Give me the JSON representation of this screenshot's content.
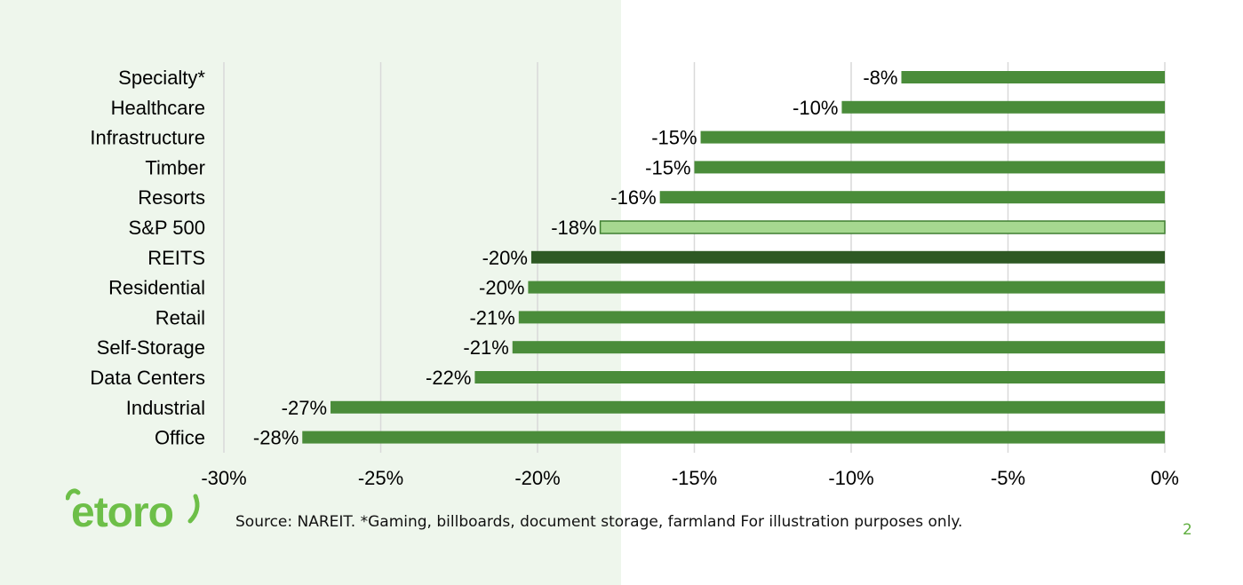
{
  "chart_data": {
    "type": "bar",
    "orientation": "horizontal",
    "categories": [
      "Specialty*",
      "Healthcare",
      "Infrastructure",
      "Timber",
      "Resorts",
      "S&P 500",
      "REITS",
      "Residential",
      "Retail",
      "Self-Storage",
      "Data Centers",
      "Industrial",
      "Office"
    ],
    "values": [
      -8.4,
      -10.3,
      -14.8,
      -15.0,
      -16.1,
      -18.0,
      -20.2,
      -20.3,
      -20.6,
      -20.8,
      -22.0,
      -26.6,
      -27.5
    ],
    "value_labels": [
      "-8%",
      "-10%",
      "-15%",
      "-15%",
      "-16%",
      "-18%",
      "-20%",
      "-20%",
      "-21%",
      "-21%",
      "-22%",
      "-27%",
      "-28%"
    ],
    "bar_colors": [
      "#4a8c3a",
      "#4a8c3a",
      "#4a8c3a",
      "#4a8c3a",
      "#4a8c3a",
      "#a6d890",
      "#2e5924",
      "#4a8c3a",
      "#4a8c3a",
      "#4a8c3a",
      "#4a8c3a",
      "#4a8c3a",
      "#4a8c3a"
    ],
    "xlim": [
      -30,
      0
    ],
    "ticks": [
      -30,
      -25,
      -20,
      -15,
      -10,
      -5,
      0
    ],
    "tick_labels": [
      "-30%",
      "-25%",
      "-20%",
      "-15%",
      "-10%",
      "-5%",
      "0%"
    ],
    "grid": "vertical",
    "title": "",
    "xlabel": "",
    "ylabel": ""
  },
  "footer": {
    "source": "Source: NAREIT. *Gaming, billboards, document storage, farmland For illustration purposes only.",
    "page_number": "2"
  },
  "logo": {
    "text": "etoro",
    "color": "#6dbf48",
    "icon": "etoro-logo"
  },
  "colors": {
    "left_panel": "#eef6ec",
    "grid": "#d9d9d9",
    "page_number": "#5fae3f"
  }
}
